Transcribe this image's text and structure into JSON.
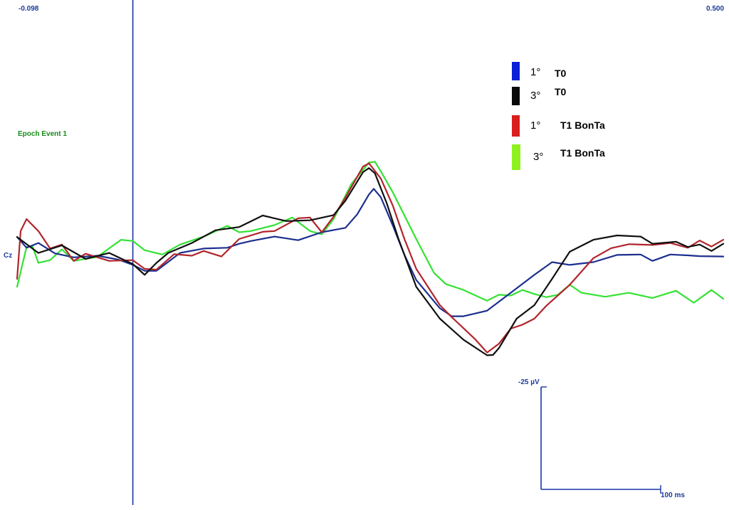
{
  "chart_data": {
    "type": "line",
    "xlim": [
      -0.098,
      0.5
    ],
    "x_range_labels": {
      "min": "-0.098",
      "max": "0.500"
    },
    "event_marker": {
      "label": "Epoch Event 1",
      "x": 0
    },
    "channel_label": "Cz",
    "scale_bar": {
      "amplitude_label": "-25 µV",
      "time_label": "100 ms"
    },
    "ylim": [
      -30,
      25
    ],
    "grid": false,
    "legend_position": "top-right",
    "colors": {
      "axis_blue": "#1a35a8",
      "text_blue": "#1c3a9e",
      "event_green": "#1a8a1a"
    },
    "series": [
      {
        "key": "s1",
        "prefix": "1°",
        "condition": "T0",
        "color": "#1c2f8e",
        "swatch": "#0a1fd6",
        "points": [
          [
            -0.098,
            0.5
          ],
          [
            -0.09,
            -2.2
          ],
          [
            -0.08,
            -1
          ],
          [
            -0.066,
            -3.6
          ],
          [
            -0.05,
            -4.6
          ],
          [
            -0.03,
            -4.2
          ],
          [
            -0.012,
            -5.2
          ],
          [
            0,
            -6.5
          ],
          [
            0.01,
            -8
          ],
          [
            0.02,
            -8
          ],
          [
            0.04,
            -3.5
          ],
          [
            0.06,
            -2.4
          ],
          [
            0.08,
            -2.2
          ],
          [
            0.09,
            -1.2
          ],
          [
            0.1,
            -0.5
          ],
          [
            0.12,
            0.6
          ],
          [
            0.14,
            -0.3
          ],
          [
            0.16,
            1.7
          ],
          [
            0.18,
            2.8
          ],
          [
            0.19,
            6.2
          ],
          [
            0.2,
            11.2
          ],
          [
            0.204,
            12.6
          ],
          [
            0.21,
            10.5
          ],
          [
            0.22,
            3.5
          ],
          [
            0.23,
            -4
          ],
          [
            0.24,
            -10.3
          ],
          [
            0.26,
            -17.4
          ],
          [
            0.27,
            -19.4
          ],
          [
            0.28,
            -19.4
          ],
          [
            0.29,
            -18.7
          ],
          [
            0.3,
            -18
          ],
          [
            0.32,
            -13.5
          ],
          [
            0.34,
            -9
          ],
          [
            0.355,
            -5.8
          ],
          [
            0.37,
            -6.5
          ],
          [
            0.39,
            -5.8
          ],
          [
            0.41,
            -4
          ],
          [
            0.43,
            -3.9
          ],
          [
            0.44,
            -5.5
          ],
          [
            0.455,
            -3.9
          ],
          [
            0.47,
            -4.1
          ],
          [
            0.48,
            -4.3
          ],
          [
            0.5,
            -4.4
          ]
        ]
      },
      {
        "key": "s2",
        "prefix": "3°",
        "condition": "T0",
        "color": "#101010",
        "swatch": "#0a0a0a",
        "points": [
          [
            -0.098,
            0.5
          ],
          [
            -0.08,
            -3.5
          ],
          [
            -0.06,
            -1.6
          ],
          [
            -0.04,
            -5
          ],
          [
            -0.02,
            -3.5
          ],
          [
            0,
            -6.3
          ],
          [
            0.01,
            -9
          ],
          [
            0.02,
            -6
          ],
          [
            0.03,
            -3.5
          ],
          [
            0.05,
            -1
          ],
          [
            0.07,
            2.2
          ],
          [
            0.09,
            3
          ],
          [
            0.11,
            5.9
          ],
          [
            0.13,
            4.5
          ],
          [
            0.15,
            4.7
          ],
          [
            0.17,
            6
          ],
          [
            0.18,
            9.6
          ],
          [
            0.195,
            16.8
          ],
          [
            0.2,
            17.8
          ],
          [
            0.205,
            16.5
          ],
          [
            0.215,
            9
          ],
          [
            0.225,
            0
          ],
          [
            0.24,
            -12
          ],
          [
            0.26,
            -20
          ],
          [
            0.28,
            -25.3
          ],
          [
            0.3,
            -29.2
          ],
          [
            0.305,
            -29.1
          ],
          [
            0.31,
            -27.4
          ],
          [
            0.325,
            -20
          ],
          [
            0.34,
            -16.6
          ],
          [
            0.355,
            -10
          ],
          [
            0.37,
            -3.2
          ],
          [
            0.39,
            -0.2
          ],
          [
            0.41,
            0.9
          ],
          [
            0.43,
            0.6
          ],
          [
            0.44,
            -1.2
          ],
          [
            0.46,
            -0.7
          ],
          [
            0.47,
            -2
          ],
          [
            0.48,
            -1.4
          ],
          [
            0.49,
            -3
          ],
          [
            0.5,
            -1.2
          ]
        ]
      },
      {
        "key": "s3",
        "prefix": "1°",
        "condition": "T1 BonTa",
        "color": "#b2252c",
        "swatch": "#d91e1e",
        "points": [
          [
            -0.098,
            -10
          ],
          [
            -0.095,
            2
          ],
          [
            -0.09,
            5
          ],
          [
            -0.08,
            2
          ],
          [
            -0.07,
            -2.4
          ],
          [
            -0.06,
            -1.4
          ],
          [
            -0.05,
            -5.5
          ],
          [
            -0.04,
            -3.7
          ],
          [
            -0.02,
            -5.5
          ],
          [
            0,
            -5.3
          ],
          [
            0.01,
            -7.5
          ],
          [
            0.02,
            -7.7
          ],
          [
            0.035,
            -3.8
          ],
          [
            0.05,
            -4.2
          ],
          [
            0.06,
            -3
          ],
          [
            0.075,
            -4.4
          ],
          [
            0.09,
            0
          ],
          [
            0.11,
            1.8
          ],
          [
            0.12,
            2
          ],
          [
            0.14,
            5.2
          ],
          [
            0.15,
            5.4
          ],
          [
            0.16,
            1.7
          ],
          [
            0.17,
            5.6
          ],
          [
            0.18,
            10.4
          ],
          [
            0.195,
            18.2
          ],
          [
            0.2,
            19
          ],
          [
            0.21,
            15.2
          ],
          [
            0.22,
            8.5
          ],
          [
            0.23,
            0
          ],
          [
            0.24,
            -7.5
          ],
          [
            0.26,
            -16.6
          ],
          [
            0.27,
            -19.6
          ],
          [
            0.29,
            -25.2
          ],
          [
            0.3,
            -28.5
          ],
          [
            0.31,
            -26.3
          ],
          [
            0.32,
            -22.5
          ],
          [
            0.33,
            -21.5
          ],
          [
            0.34,
            -20
          ],
          [
            0.35,
            -16.8
          ],
          [
            0.37,
            -11.5
          ],
          [
            0.39,
            -4.8
          ],
          [
            0.405,
            -2.3
          ],
          [
            0.42,
            -1.3
          ],
          [
            0.44,
            -1.5
          ],
          [
            0.455,
            -1
          ],
          [
            0.47,
            -2.2
          ],
          [
            0.48,
            -0.4
          ],
          [
            0.49,
            -1.9
          ],
          [
            0.5,
            -0.2
          ]
        ]
      },
      {
        "key": "s4",
        "prefix": "3°",
        "condition": "T1 BonTa",
        "color": "#33e233",
        "swatch": "#8ef01e",
        "points": [
          [
            -0.098,
            -12
          ],
          [
            -0.09,
            -2
          ],
          [
            -0.085,
            -1.8
          ],
          [
            -0.08,
            -6
          ],
          [
            -0.07,
            -5.3
          ],
          [
            -0.06,
            -2.6
          ],
          [
            -0.05,
            -5.5
          ],
          [
            -0.03,
            -4.5
          ],
          [
            -0.01,
            -0.2
          ],
          [
            0,
            -0.5
          ],
          [
            0.01,
            -2.8
          ],
          [
            0.025,
            -3.9
          ],
          [
            0.04,
            -1.4
          ],
          [
            0.06,
            0.6
          ],
          [
            0.08,
            3.3
          ],
          [
            0.09,
            1.7
          ],
          [
            0.1,
            2
          ],
          [
            0.12,
            3.5
          ],
          [
            0.135,
            5.4
          ],
          [
            0.15,
            2
          ],
          [
            0.16,
            1.2
          ],
          [
            0.17,
            5
          ],
          [
            0.185,
            13.8
          ],
          [
            0.2,
            19.2
          ],
          [
            0.205,
            19.4
          ],
          [
            0.21,
            17
          ],
          [
            0.22,
            11.8
          ],
          [
            0.24,
            0
          ],
          [
            0.255,
            -8.5
          ],
          [
            0.265,
            -11.3
          ],
          [
            0.28,
            -12.8
          ],
          [
            0.3,
            -15.5
          ],
          [
            0.31,
            -14
          ],
          [
            0.32,
            -14.2
          ],
          [
            0.33,
            -12.8
          ],
          [
            0.34,
            -13.8
          ],
          [
            0.35,
            -14.6
          ],
          [
            0.36,
            -14
          ],
          [
            0.37,
            -11.5
          ],
          [
            0.38,
            -13.5
          ],
          [
            0.4,
            -14.5
          ],
          [
            0.42,
            -13.5
          ],
          [
            0.44,
            -14.8
          ],
          [
            0.46,
            -13
          ],
          [
            0.475,
            -16
          ],
          [
            0.49,
            -12.8
          ],
          [
            0.5,
            -15
          ]
        ]
      }
    ]
  }
}
